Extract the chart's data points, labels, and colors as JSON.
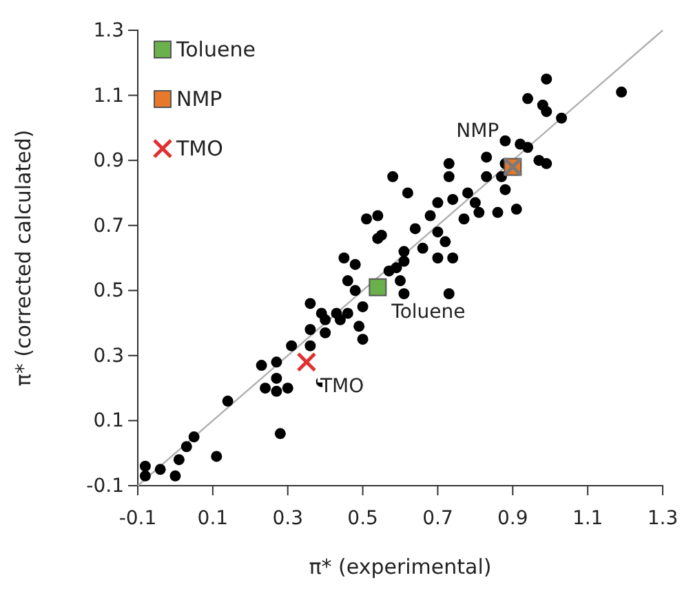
{
  "chart_data": {
    "type": "scatter",
    "xlabel": "π* (experimental)",
    "ylabel": "π* (corrected calculated)",
    "xlim": [
      -0.1,
      1.3
    ],
    "ylim": [
      -0.1,
      1.3
    ],
    "xticks": [
      -0.1,
      0.1,
      0.3,
      0.5,
      0.7,
      0.9,
      1.1,
      1.3
    ],
    "yticks": [
      -0.1,
      0.1,
      0.3,
      0.5,
      0.7,
      0.9,
      1.1,
      1.3
    ],
    "legend": "top left",
    "grid": false,
    "series": [
      {
        "type": "line",
        "color": "#b0b0b0",
        "x": [
          -0.1,
          1.3
        ],
        "values": [
          -0.1,
          1.3
        ]
      },
      {
        "color": "#000000",
        "marker": "circle",
        "x": [
          -0.08,
          -0.08,
          -0.04,
          0.0,
          0.01,
          0.03,
          0.05,
          0.11,
          0.14,
          0.28,
          0.23,
          0.27,
          0.27,
          0.24,
          0.27,
          0.3,
          0.39,
          0.31,
          0.36,
          0.36,
          0.36,
          0.39,
          0.4,
          0.43,
          0.44,
          0.46,
          0.4,
          0.49,
          0.5,
          0.45,
          0.48,
          0.46,
          0.48,
          0.5,
          0.54,
          0.57,
          0.6,
          0.61,
          0.61,
          0.99,
          1.19,
          0.94,
          0.98,
          0.99,
          1.03,
          0.88,
          0.92,
          0.94,
          0.83,
          0.88,
          0.97,
          0.99,
          0.73,
          0.73,
          0.83,
          0.87,
          0.88,
          0.91,
          0.86,
          0.58,
          0.62,
          0.7,
          0.74,
          0.78,
          0.8,
          0.81,
          0.77,
          0.68,
          0.64,
          0.7,
          0.72,
          0.66,
          0.74,
          0.61,
          0.59,
          0.7,
          0.73,
          0.51,
          0.54,
          0.55
        ],
        "values": [
          -0.04,
          -0.07,
          -0.05,
          -0.07,
          -0.02,
          0.02,
          0.05,
          -0.01,
          0.16,
          0.06,
          0.27,
          0.28,
          0.23,
          0.2,
          0.19,
          0.2,
          0.22,
          0.33,
          0.33,
          0.38,
          0.46,
          0.43,
          0.41,
          0.43,
          0.41,
          0.43,
          0.37,
          0.39,
          0.35,
          0.6,
          0.58,
          0.53,
          0.5,
          0.45,
          0.66,
          0.56,
          0.53,
          0.49,
          0.59,
          1.15,
          1.11,
          1.09,
          1.07,
          1.05,
          1.03,
          0.96,
          0.95,
          0.94,
          0.91,
          0.89,
          0.9,
          0.89,
          0.89,
          0.85,
          0.85,
          0.85,
          0.81,
          0.75,
          0.74,
          0.85,
          0.8,
          0.77,
          0.78,
          0.8,
          0.77,
          0.74,
          0.72,
          0.73,
          0.69,
          0.68,
          0.65,
          0.63,
          0.6,
          0.62,
          0.57,
          0.6,
          0.49,
          0.72,
          0.73,
          0.67
        ]
      },
      {
        "name": "Toluene",
        "color": "#6ab04c",
        "marker": "square",
        "x": [
          0.54
        ],
        "values": [
          0.51
        ]
      },
      {
        "name": "NMP",
        "color": "#e8792b",
        "marker": "square",
        "x": [
          0.9
        ],
        "values": [
          0.88
        ]
      },
      {
        "color": "#7a7a7a",
        "marker": "cross",
        "x": [
          0.9
        ],
        "values": [
          0.88
        ]
      },
      {
        "name": "TMO",
        "color": "#e03030",
        "marker": "cross",
        "x": [
          0.35
        ],
        "values": [
          0.28
        ]
      }
    ],
    "annotations": [
      {
        "text": "Toluene",
        "x": 0.54,
        "y": 0.51
      },
      {
        "text": "NMP",
        "x": 0.9,
        "y": 0.88
      },
      {
        "text": "TMO",
        "x": 0.35,
        "y": 0.28
      }
    ]
  }
}
